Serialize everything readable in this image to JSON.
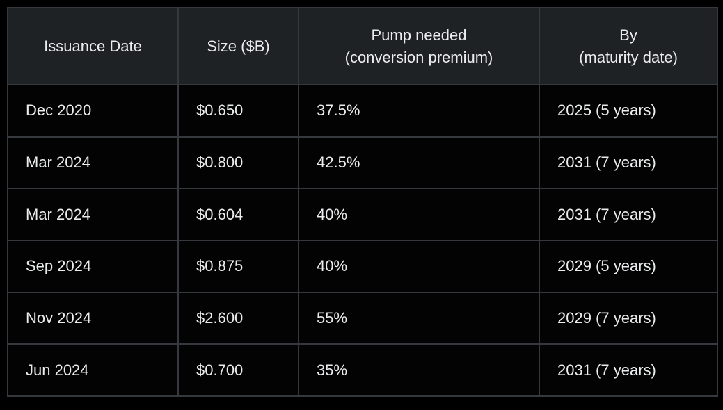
{
  "chart_data": {
    "type": "table",
    "columns": [
      "Issuance Date",
      "Size ($B)",
      "Pump needed (conversion premium)",
      "By (maturity date)"
    ],
    "rows": [
      [
        "Dec 2020",
        "$0.650",
        "37.5%",
        "2025 (5 years)"
      ],
      [
        "Mar 2024",
        "$0.800",
        "42.5%",
        "2031 (7 years)"
      ],
      [
        "Mar 2024",
        "$0.604",
        "40%",
        "2031 (7 years)"
      ],
      [
        "Sep 2024",
        "$0.875",
        "40%",
        "2029 (5 years)"
      ],
      [
        "Nov 2024",
        "$2.600",
        "55%",
        "2029 (7 years)"
      ],
      [
        "Jun 2024",
        "$0.700",
        "35%",
        "2031 (7 years)"
      ]
    ]
  },
  "table": {
    "headers": [
      {
        "line1": "Issuance Date",
        "line2": ""
      },
      {
        "line1": "Size ($B)",
        "line2": ""
      },
      {
        "line1": "Pump needed",
        "line2": "(conversion premium)"
      },
      {
        "line1": "By",
        "line2": "(maturity date)"
      }
    ]
  },
  "colors": {
    "background": "#000000",
    "header_background": "#1f2225",
    "cell_background": "#030303",
    "border": "#35383c",
    "text": "#ebecee"
  }
}
